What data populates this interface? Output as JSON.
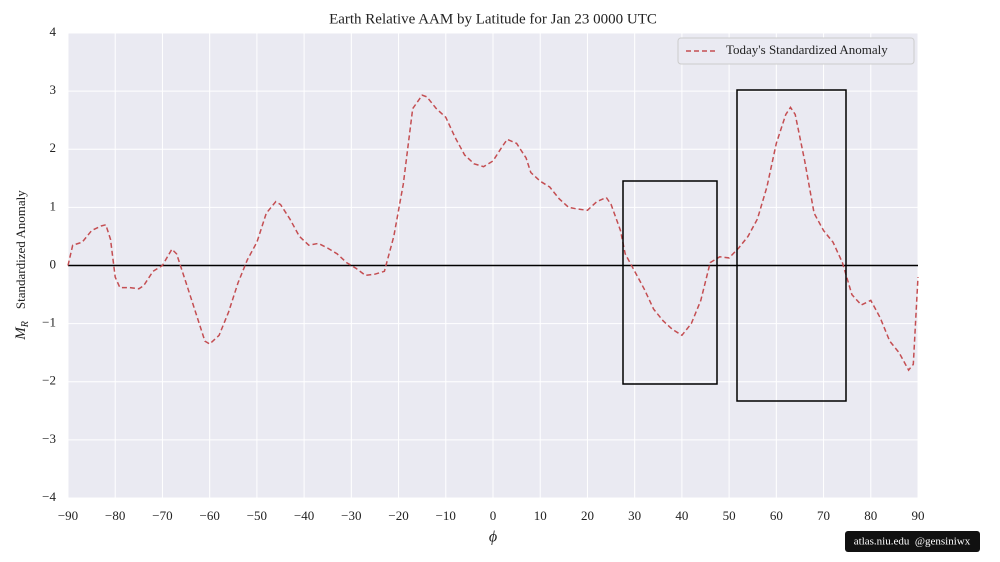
{
  "chart_data": {
    "type": "line",
    "title": "Earth Relative AAM by Latitude for Jan 23 0000 UTC",
    "xlabel": "ϕ",
    "ylabel_symbol": "M",
    "ylabel_subscript": "R",
    "ylabel": "Standardized Anomaly",
    "credit": "atlas.niu.edu  @gensiniwx",
    "x": [
      -90,
      -89,
      -87,
      -85,
      -83,
      -82,
      -81,
      -80,
      -79,
      -77,
      -75,
      -74,
      -72,
      -70,
      -68,
      -67,
      -65,
      -63,
      -61,
      -60,
      -58,
      -56,
      -54,
      -52,
      -50,
      -48,
      -46,
      -45,
      -43,
      -41,
      -39,
      -37,
      -35,
      -33,
      -31,
      -29,
      -27,
      -25,
      -23,
      -21,
      -19,
      -17,
      -15,
      -14,
      -12,
      -10,
      -8,
      -6,
      -4,
      -2,
      0,
      2,
      3,
      5,
      7,
      8,
      10,
      12,
      14,
      16,
      18,
      20,
      22,
      24,
      25,
      27,
      28,
      30,
      32,
      34,
      36,
      38,
      40,
      42,
      44,
      46,
      48,
      50,
      52,
      54,
      56,
      58,
      60,
      62,
      63,
      64,
      66,
      68,
      70,
      72,
      74,
      76,
      78,
      80,
      82,
      84,
      86,
      88,
      89,
      90
    ],
    "series": [
      {
        "name": "Today's Standardized Anomaly",
        "color": "#c44e52",
        "values": [
          0,
          0.35,
          0.4,
          0.6,
          0.68,
          0.7,
          0.45,
          -0.2,
          -0.38,
          -0.38,
          -0.4,
          -0.35,
          -0.1,
          0,
          0.28,
          0.2,
          -0.3,
          -0.8,
          -1.3,
          -1.35,
          -1.2,
          -0.8,
          -0.3,
          0.1,
          0.4,
          0.9,
          1.1,
          1.05,
          0.8,
          0.5,
          0.35,
          0.38,
          0.3,
          0.2,
          0.05,
          -0.05,
          -0.17,
          -0.15,
          -0.1,
          0.5,
          1.4,
          2.7,
          2.93,
          2.9,
          2.7,
          2.55,
          2.2,
          1.9,
          1.75,
          1.7,
          1.8,
          2.05,
          2.17,
          2.1,
          1.85,
          1.6,
          1.45,
          1.35,
          1.15,
          1.0,
          0.97,
          0.95,
          1.1,
          1.17,
          1.05,
          0.6,
          0.2,
          -0.1,
          -0.4,
          -0.75,
          -0.95,
          -1.1,
          -1.2,
          -1.0,
          -0.6,
          0.05,
          0.15,
          0.13,
          0.3,
          0.5,
          0.8,
          1.35,
          2.1,
          2.6,
          2.72,
          2.6,
          1.8,
          0.9,
          0.6,
          0.4,
          0.05,
          -0.5,
          -0.68,
          -0.6,
          -0.9,
          -1.3,
          -1.5,
          -1.8,
          -1.7,
          -0.2
        ]
      }
    ],
    "hline": 0,
    "xlim": [
      -90,
      90
    ],
    "ylim": [
      -4,
      4
    ],
    "xticks": [
      {
        "value": -90,
        "label": "−90"
      },
      {
        "value": -80,
        "label": "−80"
      },
      {
        "value": -70,
        "label": "−70"
      },
      {
        "value": -60,
        "label": "−60"
      },
      {
        "value": -50,
        "label": "−50"
      },
      {
        "value": -40,
        "label": "−40"
      },
      {
        "value": -30,
        "label": "−30"
      },
      {
        "value": -20,
        "label": "−20"
      },
      {
        "value": -10,
        "label": "−10"
      },
      0,
      10,
      20,
      30,
      40,
      50,
      60,
      70,
      80,
      90
    ],
    "yticks": [
      {
        "value": -4,
        "label": "−4"
      },
      {
        "value": -3,
        "label": "−3"
      },
      {
        "value": -2,
        "label": "−2"
      },
      {
        "value": -1,
        "label": "−1"
      },
      0,
      1,
      2,
      3,
      4
    ],
    "grid": true,
    "legend": "upper right"
  }
}
